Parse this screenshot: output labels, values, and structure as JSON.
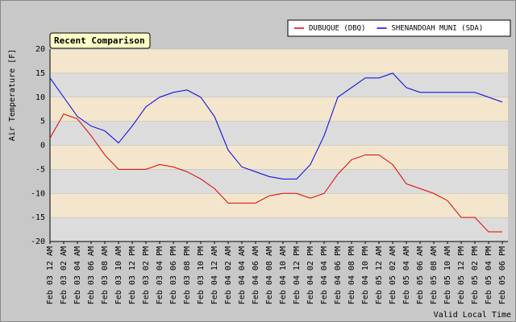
{
  "chart_data": {
    "type": "line",
    "title": "Recent Comparison",
    "y_label": "Air Temperature [F]",
    "x_label": "Valid Local Time",
    "categories": [
      "Feb 03 12 AM",
      "Feb 03 02 AM",
      "Feb 03 04 AM",
      "Feb 03 06 AM",
      "Feb 03 08 AM",
      "Feb 03 10 AM",
      "Feb 03 12 PM",
      "Feb 03 02 PM",
      "Feb 03 04 PM",
      "Feb 03 06 PM",
      "Feb 03 08 PM",
      "Feb 03 10 PM",
      "Feb 04 12 AM",
      "Feb 04 02 AM",
      "Feb 04 04 AM",
      "Feb 04 06 AM",
      "Feb 04 08 AM",
      "Feb 04 10 AM",
      "Feb 04 12 PM",
      "Feb 04 02 PM",
      "Feb 04 04 PM",
      "Feb 04 06 PM",
      "Feb 04 08 PM",
      "Feb 04 10 PM",
      "Feb 05 12 AM",
      "Feb 05 02 AM",
      "Feb 05 04 AM",
      "Feb 05 06 AM",
      "Feb 05 08 AM",
      "Feb 05 10 AM",
      "Feb 05 12 PM",
      "Feb 05 02 PM",
      "Feb 05 04 PM",
      "Feb 05 06 PM"
    ],
    "series": [
      {
        "name": "DUBUQUE (DBQ)",
        "color": "#e00000",
        "values": [
          1.5,
          6.5,
          5.5,
          2,
          -2,
          -5,
          -5,
          -5,
          -4,
          -4.5,
          -5.5,
          -7,
          -9,
          -12,
          -12,
          -12,
          -10.5,
          -10,
          -10,
          -11,
          -10,
          -6,
          -3,
          -2,
          -2,
          -4,
          -8,
          -9,
          -10,
          -11.5,
          -15,
          -15,
          -18,
          -18
        ]
      },
      {
        "name": "SHENANDOAH MUNI (SDA)",
        "color": "#0000e0",
        "values": [
          14,
          10,
          6,
          4,
          3,
          0.5,
          4,
          8,
          10,
          11,
          11.5,
          10,
          6,
          -1,
          -4.5,
          -5.5,
          -6.5,
          -7,
          -7,
          -4,
          2,
          10,
          12,
          14,
          14,
          15,
          12,
          11,
          11,
          11,
          11,
          11,
          10,
          9
        ]
      }
    ],
    "ylim": [
      -20,
      20
    ],
    "yticks": [
      -20,
      -15,
      -10,
      -5,
      0,
      5,
      10,
      15,
      20
    ],
    "legend": "upper right",
    "grid": true
  }
}
